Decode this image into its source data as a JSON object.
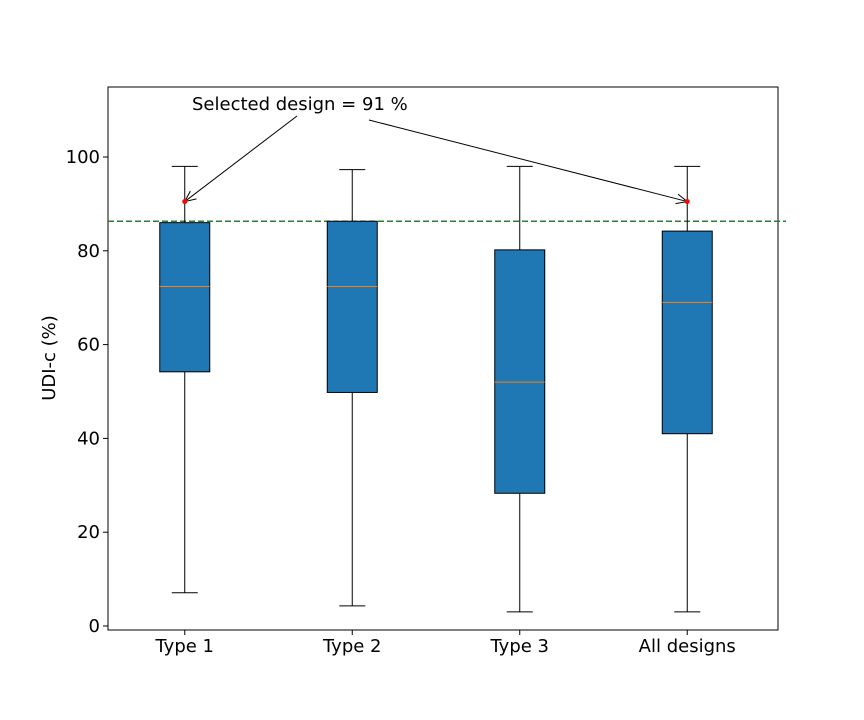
{
  "chart_data": {
    "type": "boxplot",
    "ylabel": "UDI-c (%)",
    "ylim": [
      -1,
      115
    ],
    "yticks": [
      0,
      20,
      40,
      60,
      80,
      100
    ],
    "categories": [
      "Type 1",
      "Type 2",
      "Type 3",
      "All designs"
    ],
    "boxes": [
      {
        "category": "Type 1",
        "whisker_low": 7.1,
        "q1": 54.2,
        "median": 72.4,
        "q3": 86.0,
        "whisker_high": 98.0
      },
      {
        "category": "Type 2",
        "whisker_low": 4.3,
        "q1": 49.8,
        "median": 72.4,
        "q3": 86.3,
        "whisker_high": 97.3
      },
      {
        "category": "Type 3",
        "whisker_low": 3.0,
        "q1": 28.3,
        "median": 52.0,
        "q3": 80.2,
        "whisker_high": 98.0
      },
      {
        "category": "All designs",
        "whisker_low": 3.0,
        "q1": 41.0,
        "median": 69.0,
        "q3": 84.2,
        "whisker_high": 98.0
      }
    ],
    "reference_line": {
      "value": 86.3,
      "color": "#2e7d32",
      "style": "dashed"
    },
    "selected_points": [
      {
        "category": "Type 1",
        "value": 90.5
      },
      {
        "category": "All designs",
        "value": 90.5
      }
    ],
    "annotation": {
      "text": "Selected design = 91 %",
      "targets": [
        "Type 1",
        "All designs"
      ]
    },
    "colors": {
      "box_fill": "#1f77b4",
      "median": "#ff7f0e",
      "marker": "#ff0000"
    },
    "grid": false,
    "legend": "none"
  }
}
